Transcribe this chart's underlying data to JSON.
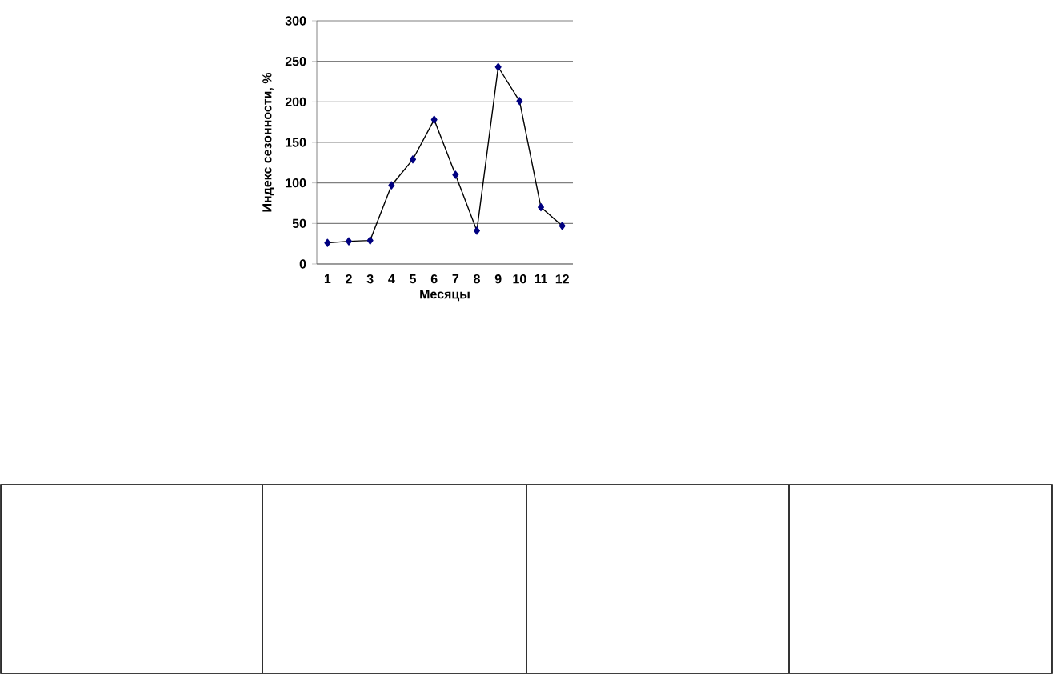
{
  "chart_data": {
    "type": "line",
    "xlabel": "Месяцы",
    "ylabel": "Индекс сезонности, %",
    "categories": [
      "1",
      "2",
      "3",
      "4",
      "5",
      "6",
      "7",
      "8",
      "9",
      "10",
      "11",
      "12"
    ],
    "series": [
      {
        "color": "#000080",
        "values": [
          26,
          28,
          29,
          97,
          129,
          178,
          110,
          41,
          243,
          201,
          70,
          47
        ]
      }
    ],
    "ylim": [
      0,
      300
    ],
    "yticks": [
      0,
      50,
      100,
      150,
      200,
      250,
      300
    ],
    "grid": "y",
    "marker": "diamond",
    "line_style": "solid"
  }
}
